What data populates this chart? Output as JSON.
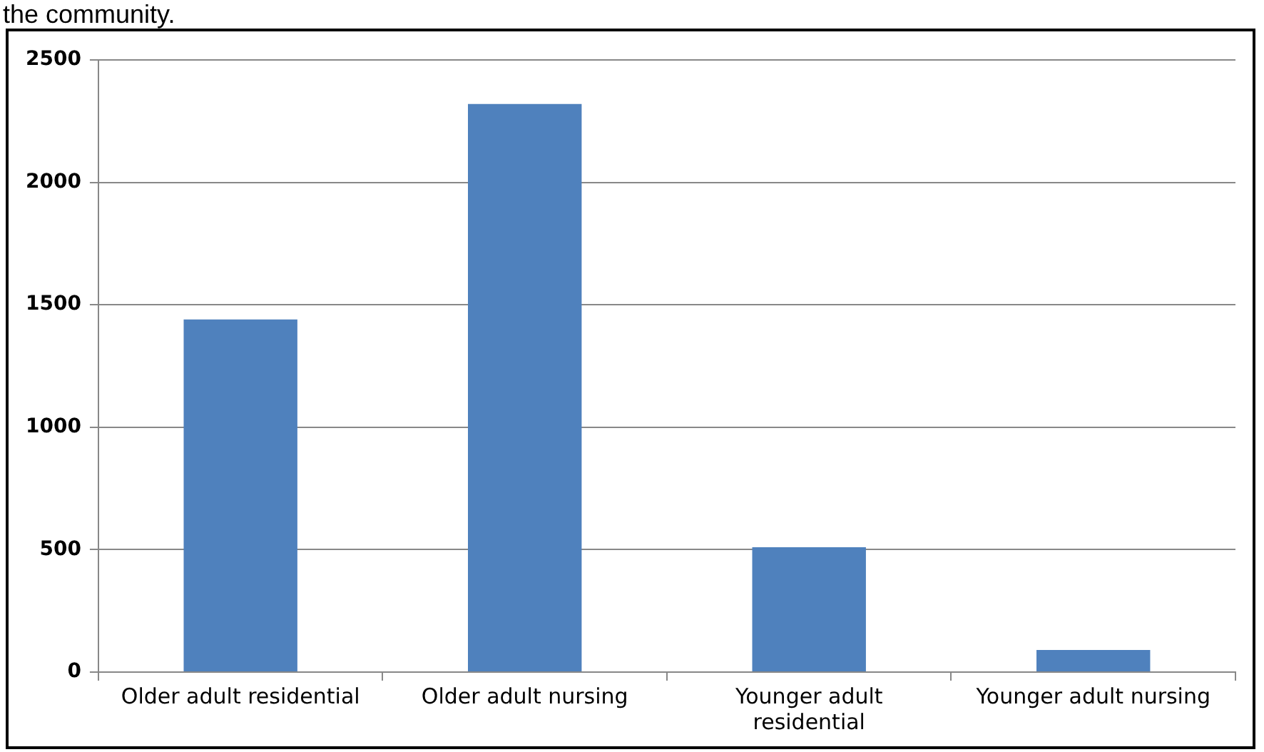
{
  "chart_data": {
    "type": "bar",
    "annotations": [
      "the community."
    ],
    "categories": [
      "Older adult residential",
      "Older adult nursing",
      "Younger adult residential",
      "Younger adult nursing"
    ],
    "values": [
      1440,
      2320,
      510,
      90
    ],
    "color": "#4f81bd",
    "ylim": [
      0,
      2500
    ],
    "yticks": [
      0,
      500,
      1000,
      1500,
      2000,
      2500
    ],
    "grid": "y",
    "legend": false
  }
}
